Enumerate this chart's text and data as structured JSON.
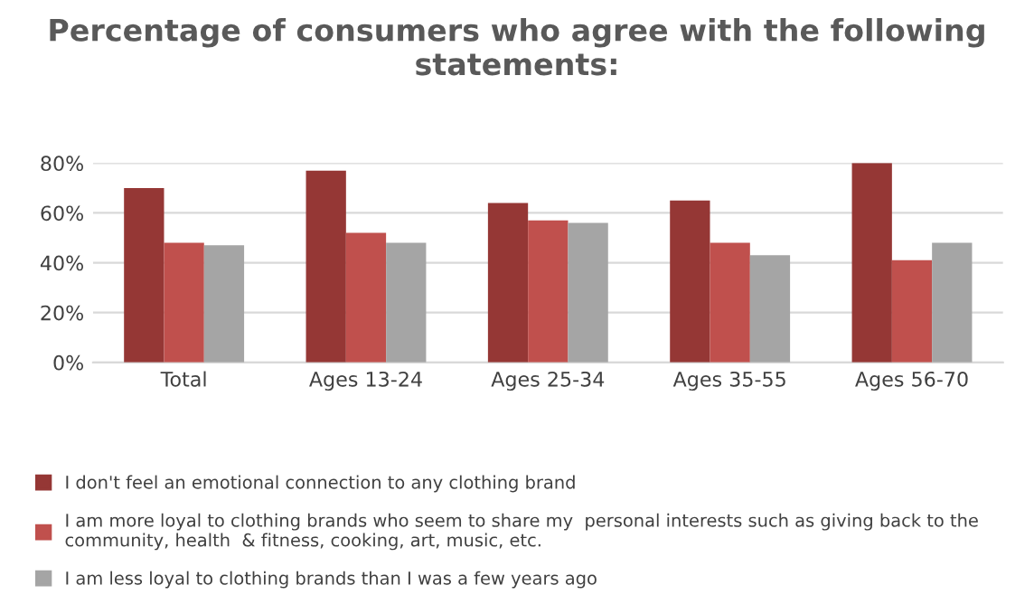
{
  "chart_data": {
    "type": "bar",
    "title": "Percentage of consumers who agree with the following\nstatements:",
    "categories": [
      "Total",
      "Ages 13-24",
      "Ages 25-34",
      "Ages 35-55",
      "Ages 56-70"
    ],
    "series": [
      {
        "name": "I don't feel an emotional connection to any clothing brand",
        "color": "#953735",
        "values": [
          70,
          77,
          64,
          65,
          80
        ]
      },
      {
        "name": "I am more loyal to clothing brands who seem to share my  personal interests such as giving back to the\ncommunity, health  & fitness, cooking, art, music, etc.",
        "color": "#c0504d",
        "values": [
          48,
          52,
          57,
          48,
          41
        ]
      },
      {
        "name": "I am less loyal to clothing brands than I was a few years ago",
        "color": "#a5a5a5",
        "values": [
          47,
          48,
          56,
          43,
          48
        ]
      }
    ],
    "ylim": [
      0,
      80
    ],
    "yticks": [
      {
        "value": 0,
        "label": "0%"
      },
      {
        "value": 20,
        "label": "20%"
      },
      {
        "value": 40,
        "label": "40%"
      },
      {
        "value": 60,
        "label": "60%"
      },
      {
        "value": 80,
        "label": "80%"
      }
    ],
    "grid": "y",
    "legend": "bottom"
  }
}
